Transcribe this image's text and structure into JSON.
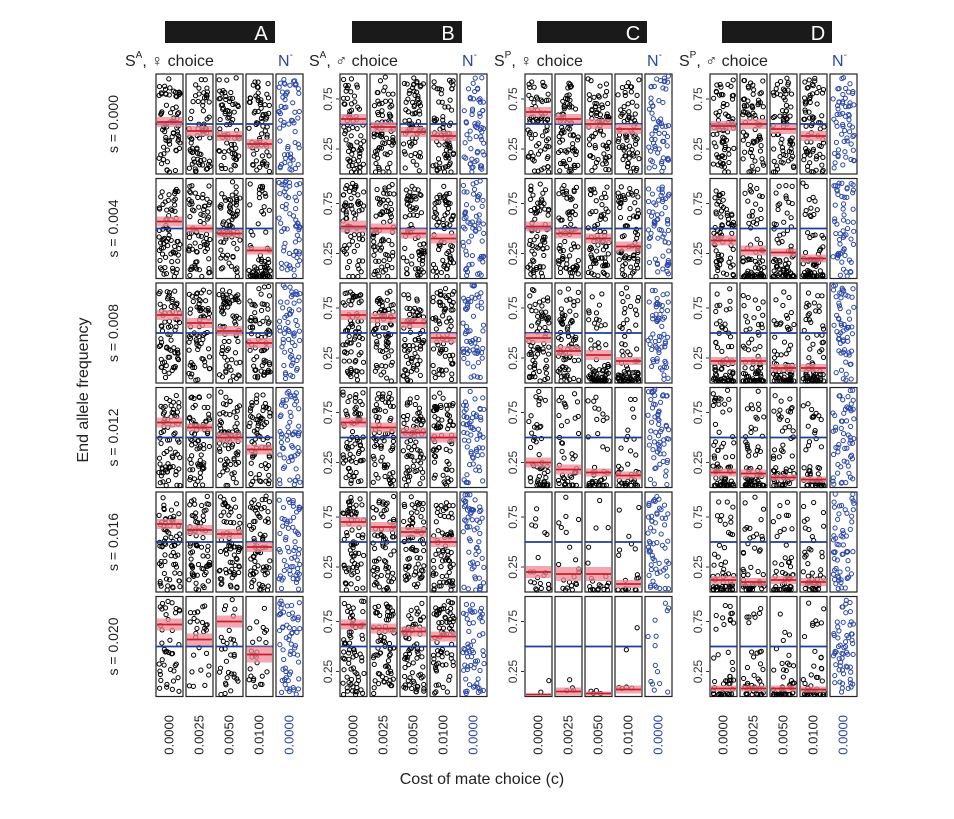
{
  "chart_data": {
    "type": "scatter",
    "title": "",
    "xlabel": "Cost of mate choice (c)",
    "ylabel": "End allele frequency",
    "ylim": [
      0,
      1
    ],
    "y_ticks": [
      "0.25",
      "0.75"
    ],
    "x_tick_labels": [
      "0.0000",
      "0.0025",
      "0.0050",
      "0.0100",
      "0.0000"
    ],
    "null_label": "N",
    "null_label_sup": "-",
    "row_labels": [
      "s = 0.000",
      "s = 0.004",
      "s = 0.008",
      "s = 0.012",
      "s = 0.016",
      "s = 0.020"
    ],
    "grid": false,
    "colors": {
      "points": "#000000",
      "null_points": "#2b47a8",
      "mean": "#c81e2a",
      "band": "#f08a96",
      "reference": "#1d3c9b"
    },
    "groups": [
      {
        "id": "A",
        "letter": "A",
        "sel": "S",
        "sel_sup": "A",
        "choice": ", ♀ choice",
        "rows": [
          {
            "s": "s = 0.000",
            "ref": 0.5,
            "means": [
              0.52,
              0.43,
              0.38,
              0.3
            ],
            "half_widths": [
              0.05,
              0.05,
              0.05,
              0.05
            ],
            "density": [
              1,
              1,
              1,
              1
            ]
          },
          {
            "s": "s = 0.004",
            "ref": 0.5,
            "means": [
              0.57,
              0.5,
              0.45,
              0.28
            ],
            "half_widths": [
              0.05,
              0.04,
              0.04,
              0.04
            ],
            "density": [
              1,
              1,
              1,
              1
            ]
          },
          {
            "s": "s = 0.008",
            "ref": 0.5,
            "means": [
              0.68,
              0.6,
              0.52,
              0.4
            ],
            "half_widths": [
              0.05,
              0.05,
              0.05,
              0.05
            ],
            "density": [
              1,
              1,
              1,
              1
            ]
          },
          {
            "s": "s = 0.012",
            "ref": 0.5,
            "means": [
              0.65,
              0.6,
              0.5,
              0.38
            ],
            "half_widths": [
              0.05,
              0.04,
              0.05,
              0.05
            ],
            "density": [
              1,
              1,
              1,
              1
            ]
          },
          {
            "s": "s = 0.016",
            "ref": 0.5,
            "means": [
              0.68,
              0.62,
              0.58,
              0.45
            ],
            "half_widths": [
              0.05,
              0.05,
              0.05,
              0.05
            ],
            "density": [
              1,
              1,
              1,
              1
            ]
          },
          {
            "s": "s = 0.020",
            "ref": 0.5,
            "means": [
              0.72,
              0.57,
              0.75,
              0.42
            ],
            "half_widths": [
              0.06,
              0.06,
              0.06,
              0.08
            ],
            "density": [
              0.6,
              0.4,
              0.45,
              0.35
            ]
          }
        ]
      },
      {
        "id": "B",
        "letter": "B",
        "sel": "S",
        "sel_sup": "A",
        "choice": ", ♂ choice",
        "rows": [
          {
            "s": "s = 0.000",
            "ref": 0.5,
            "means": [
              0.55,
              0.47,
              0.42,
              0.38
            ],
            "half_widths": [
              0.05,
              0.05,
              0.05,
              0.05
            ],
            "density": [
              1,
              1,
              1,
              1
            ]
          },
          {
            "s": "s = 0.004",
            "ref": 0.5,
            "means": [
              0.52,
              0.5,
              0.45,
              0.4
            ],
            "half_widths": [
              0.06,
              0.05,
              0.05,
              0.05
            ],
            "density": [
              1,
              1,
              1,
              1
            ]
          },
          {
            "s": "s = 0.008",
            "ref": 0.5,
            "means": [
              0.68,
              0.65,
              0.6,
              0.45
            ],
            "half_widths": [
              0.05,
              0.05,
              0.05,
              0.05
            ],
            "density": [
              1,
              1,
              1,
              1
            ]
          },
          {
            "s": "s = 0.012",
            "ref": 0.5,
            "means": [
              0.65,
              0.6,
              0.55,
              0.5
            ],
            "half_widths": [
              0.05,
              0.05,
              0.05,
              0.05
            ],
            "density": [
              1,
              1,
              1,
              1
            ]
          },
          {
            "s": "s = 0.016",
            "ref": 0.5,
            "means": [
              0.7,
              0.65,
              0.6,
              0.5
            ],
            "half_widths": [
              0.05,
              0.05,
              0.05,
              0.05
            ],
            "density": [
              1,
              1,
              1,
              1
            ]
          },
          {
            "s": "s = 0.020",
            "ref": 0.5,
            "means": [
              0.72,
              0.68,
              0.65,
              0.6
            ],
            "half_widths": [
              0.05,
              0.05,
              0.05,
              0.05
            ],
            "density": [
              1,
              1,
              1,
              1
            ]
          }
        ]
      },
      {
        "id": "C",
        "letter": "C",
        "sel": "S",
        "sel_sup": "P",
        "choice": ", ♀ choice",
        "rows": [
          {
            "s": "s = 0.000",
            "ref": 0.5,
            "means": [
              0.62,
              0.55,
              0.5,
              0.45
            ],
            "half_widths": [
              0.05,
              0.05,
              0.05,
              0.05
            ],
            "density": [
              1,
              1,
              1,
              1
            ]
          },
          {
            "s": "s = 0.004",
            "ref": 0.5,
            "means": [
              0.52,
              0.45,
              0.4,
              0.32
            ],
            "half_widths": [
              0.05,
              0.05,
              0.05,
              0.05
            ],
            "density": [
              1,
              1,
              1,
              1
            ]
          },
          {
            "s": "s = 0.008",
            "ref": 0.5,
            "means": [
              0.45,
              0.32,
              0.28,
              0.22
            ],
            "half_widths": [
              0.05,
              0.05,
              0.05,
              0.04
            ],
            "density": [
              1,
              1,
              1,
              1
            ]
          },
          {
            "s": "s = 0.012",
            "ref": 0.5,
            "means": [
              0.25,
              0.18,
              0.15,
              0.12
            ],
            "half_widths": [
              0.05,
              0.05,
              0.04,
              0.04
            ],
            "density": [
              0.7,
              0.6,
              0.55,
              0.5
            ]
          },
          {
            "s": "s = 0.016",
            "ref": 0.5,
            "means": [
              0.2,
              0.18,
              0.18,
              0.08
            ],
            "half_widths": [
              0.06,
              0.07,
              0.07,
              0.04
            ],
            "density": [
              0.3,
              0.3,
              0.3,
              0.25
            ]
          },
          {
            "s": "s = 0.020",
            "ref": 0.5,
            "means": [
              0.02,
              0.05,
              0.03,
              0.07
            ],
            "half_widths": [
              0.01,
              0.04,
              0.02,
              0.04
            ],
            "density": [
              0.03,
              0.06,
              0.05,
              0.08
            ]
          }
        ]
      },
      {
        "id": "D",
        "letter": "D",
        "sel": "S",
        "sel_sup": "P",
        "choice": ", ♂ choice",
        "rows": [
          {
            "s": "s = 0.000",
            "ref": 0.5,
            "means": [
              0.48,
              0.5,
              0.45,
              0.38
            ],
            "half_widths": [
              0.05,
              0.05,
              0.05,
              0.05
            ],
            "density": [
              1,
              1,
              1,
              1
            ]
          },
          {
            "s": "s = 0.004",
            "ref": 0.5,
            "means": [
              0.38,
              0.28,
              0.26,
              0.2
            ],
            "half_widths": [
              0.05,
              0.05,
              0.04,
              0.04
            ],
            "density": [
              1,
              1,
              1,
              1
            ]
          },
          {
            "s": "s = 0.008",
            "ref": 0.5,
            "means": [
              0.22,
              0.22,
              0.15,
              0.15
            ],
            "half_widths": [
              0.04,
              0.04,
              0.04,
              0.04
            ],
            "density": [
              1,
              1,
              1,
              1
            ]
          },
          {
            "s": "s = 0.012",
            "ref": 0.5,
            "means": [
              0.15,
              0.14,
              0.1,
              0.08
            ],
            "half_widths": [
              0.04,
              0.04,
              0.03,
              0.03
            ],
            "density": [
              1,
              0.9,
              0.8,
              0.7
            ]
          },
          {
            "s": "s = 0.016",
            "ref": 0.5,
            "means": [
              0.12,
              0.1,
              0.12,
              0.1
            ],
            "half_widths": [
              0.04,
              0.04,
              0.04,
              0.04
            ],
            "density": [
              0.8,
              0.7,
              0.7,
              0.6
            ]
          },
          {
            "s": "s = 0.020",
            "ref": 0.5,
            "means": [
              0.08,
              0.08,
              0.08,
              0.07
            ],
            "half_widths": [
              0.03,
              0.03,
              0.03,
              0.03
            ],
            "density": [
              0.6,
              0.6,
              0.6,
              0.6
            ]
          }
        ]
      }
    ]
  }
}
